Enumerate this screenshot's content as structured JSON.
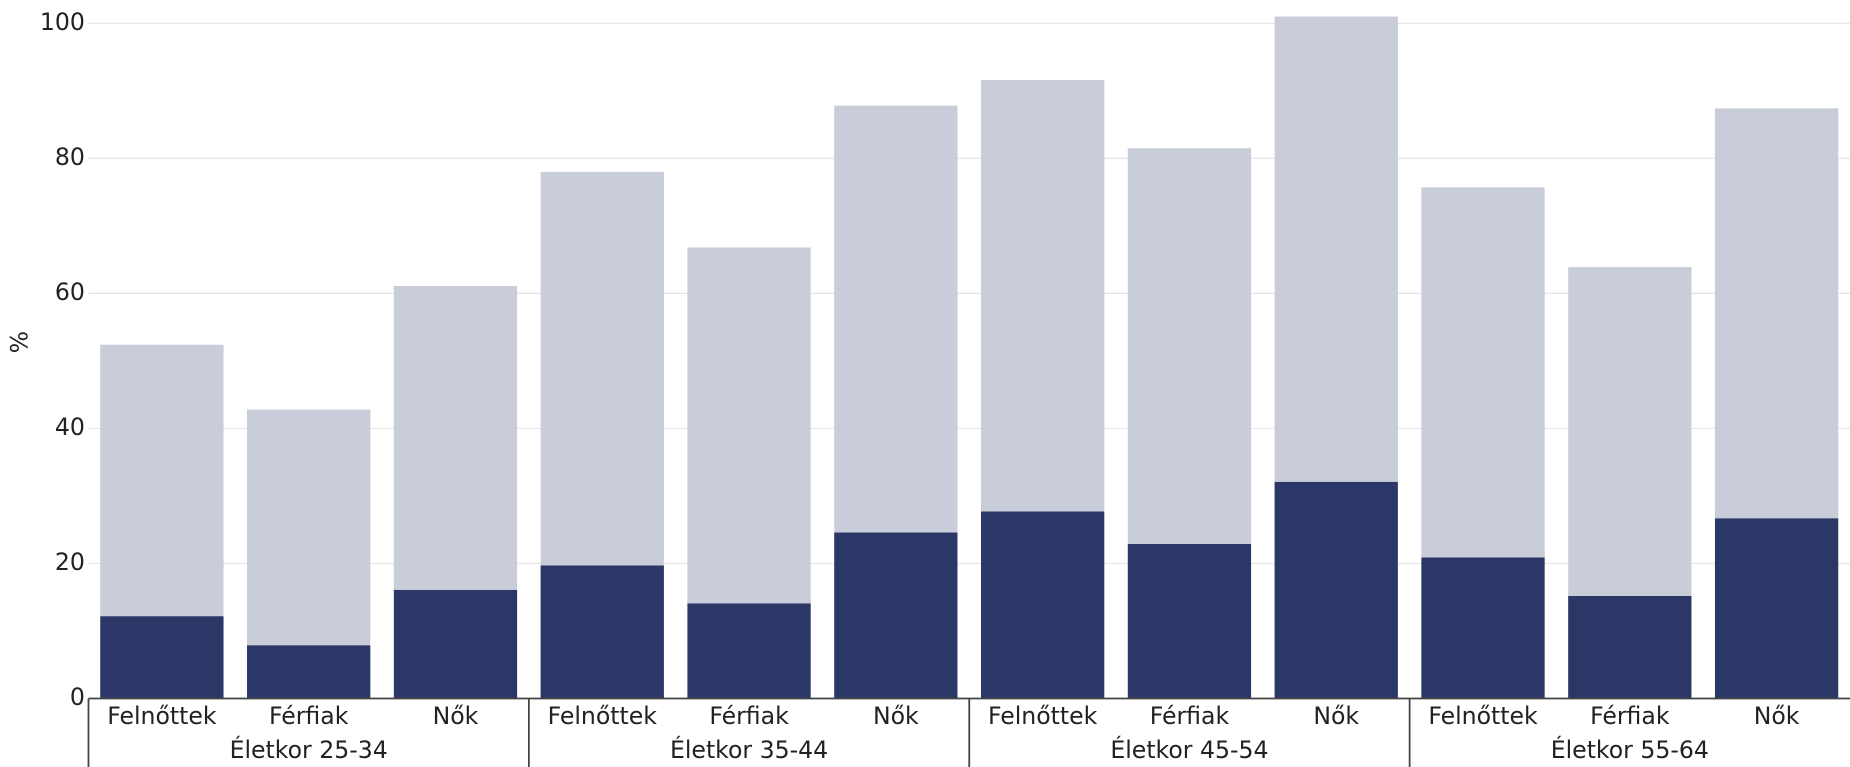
{
  "chart_data": {
    "type": "stacked_bar",
    "y_label": "%",
    "groups": [
      {
        "name": "Életkor 25-34",
        "categories": [
          "Felnőttek",
          "Férfiak",
          "Nők"
        ]
      },
      {
        "name": "Életkor 35-44",
        "categories": [
          "Felnőttek",
          "Férfiak",
          "Nők"
        ]
      },
      {
        "name": "Életkor 45-54",
        "categories": [
          "Felnőttek",
          "Férfiak",
          "Nők"
        ]
      },
      {
        "name": "Életkor 55-64",
        "categories": [
          "Felnőttek",
          "Férfiak",
          "Nők"
        ]
      }
    ],
    "series": [
      {
        "color": "#2b3766",
        "values": [
          12.2,
          7.9,
          16.1,
          19.7,
          14.1,
          24.6,
          27.7,
          22.9,
          32.1,
          20.9,
          15.2,
          26.7
        ]
      },
      {
        "color": "#c9ccd9",
        "values": [
          40.2,
          34.9,
          45.0,
          58.3,
          52.7,
          63.2,
          63.9,
          58.6,
          68.9,
          54.8,
          48.7,
          60.7
        ]
      }
    ],
    "ylim": [
      0,
      101
    ],
    "yticks": [
      0,
      20,
      40,
      60,
      80,
      100
    ],
    "grid": true
  }
}
